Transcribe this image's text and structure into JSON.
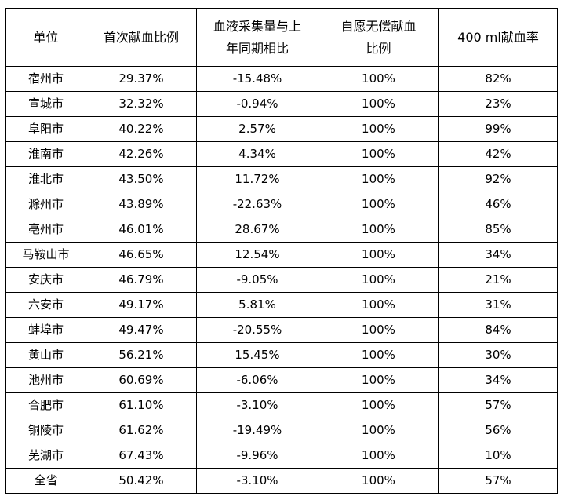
{
  "table": {
    "headers": {
      "unit": "单位",
      "first_time_ratio": "首次献血比例",
      "yoy_change_line1": "血液采集量与上",
      "yoy_change_line2": "年同期相比",
      "voluntary_line1": "自愿无偿献血",
      "voluntary_line2": "比例",
      "ml400_rate": "400 ml献血率"
    },
    "rows": [
      {
        "unit": "宿州市",
        "first": "29.37%",
        "change": "-15.48%",
        "voluntary": "100%",
        "ml400": "82%"
      },
      {
        "unit": "宣城市",
        "first": "32.32%",
        "change": "-0.94%",
        "voluntary": "100%",
        "ml400": "23%"
      },
      {
        "unit": "阜阳市",
        "first": "40.22%",
        "change": "2.57%",
        "voluntary": "100%",
        "ml400": "99%"
      },
      {
        "unit": "淮南市",
        "first": "42.26%",
        "change": "4.34%",
        "voluntary": "100%",
        "ml400": "42%"
      },
      {
        "unit": "淮北市",
        "first": "43.50%",
        "change": "11.72%",
        "voluntary": "100%",
        "ml400": "92%"
      },
      {
        "unit": "滁州市",
        "first": "43.89%",
        "change": "-22.63%",
        "voluntary": "100%",
        "ml400": "46%"
      },
      {
        "unit": "亳州市",
        "first": "46.01%",
        "change": "28.67%",
        "voluntary": "100%",
        "ml400": "85%"
      },
      {
        "unit": "马鞍山市",
        "first": "46.65%",
        "change": "12.54%",
        "voluntary": "100%",
        "ml400": "34%"
      },
      {
        "unit": "安庆市",
        "first": "46.79%",
        "change": "-9.05%",
        "voluntary": "100%",
        "ml400": "21%"
      },
      {
        "unit": "六安市",
        "first": "49.17%",
        "change": "5.81%",
        "voluntary": "100%",
        "ml400": "31%"
      },
      {
        "unit": "蚌埠市",
        "first": "49.47%",
        "change": "-20.55%",
        "voluntary": "100%",
        "ml400": "84%"
      },
      {
        "unit": "黄山市",
        "first": "56.21%",
        "change": "15.45%",
        "voluntary": "100%",
        "ml400": "30%"
      },
      {
        "unit": "池州市",
        "first": "60.69%",
        "change": "-6.06%",
        "voluntary": "100%",
        "ml400": "34%"
      },
      {
        "unit": "合肥市",
        "first": "61.10%",
        "change": "-3.10%",
        "voluntary": "100%",
        "ml400": "57%"
      },
      {
        "unit": "铜陵市",
        "first": "61.62%",
        "change": "-19.49%",
        "voluntary": "100%",
        "ml400": "56%"
      },
      {
        "unit": "芜湖市",
        "first": "67.43%",
        "change": "-9.96%",
        "voluntary": "100%",
        "ml400": "10%"
      },
      {
        "unit": "全省",
        "first": "50.42%",
        "change": "-3.10%",
        "voluntary": "100%",
        "ml400": "57%"
      }
    ]
  }
}
